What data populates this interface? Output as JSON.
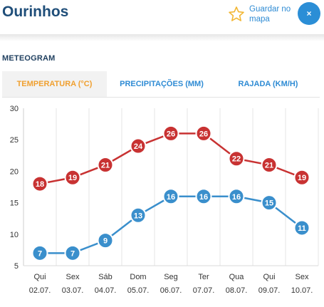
{
  "header": {
    "city": "Ourinhos",
    "save_map_label": "Guardar no mapa",
    "close_symbol": "×",
    "icons": {
      "save": "star-outline-icon",
      "close": "close-icon"
    },
    "accent_color": "#2b8ed6",
    "star_color": "#f2b632"
  },
  "section": {
    "title": "METEOGRAM"
  },
  "tabs": [
    {
      "label": "TEMPERATURA (°C)",
      "active": true
    },
    {
      "label": "PRECIPITAÇÕES (MM)",
      "active": false
    },
    {
      "label": "RAJADA (KM/H)",
      "active": false
    }
  ],
  "chart_data": {
    "type": "line",
    "title": "",
    "xlabel": "",
    "ylabel": "",
    "ylim": [
      5,
      30
    ],
    "yticks": [
      5,
      10,
      15,
      20,
      25,
      30
    ],
    "grid": {
      "vertical": true,
      "horizontal": false
    },
    "categories": [
      {
        "day": "Qui",
        "date": "02.07."
      },
      {
        "day": "Sex",
        "date": "03.07."
      },
      {
        "day": "Sáb",
        "date": "04.07."
      },
      {
        "day": "Dom",
        "date": "05.07."
      },
      {
        "day": "Seg",
        "date": "06.07."
      },
      {
        "day": "Ter",
        "date": "07.07."
      },
      {
        "day": "Qua",
        "date": "08.07."
      },
      {
        "day": "Qui",
        "date": "09.07."
      },
      {
        "day": "Sex",
        "date": "10.07."
      }
    ],
    "series": [
      {
        "key": "max",
        "color": "#c83232",
        "values": [
          18,
          19,
          21,
          24,
          26,
          26,
          22,
          21,
          19
        ]
      },
      {
        "key": "min",
        "color": "#3a8fcc",
        "values": [
          7,
          7,
          9,
          13,
          16,
          16,
          16,
          15,
          11
        ]
      }
    ]
  }
}
